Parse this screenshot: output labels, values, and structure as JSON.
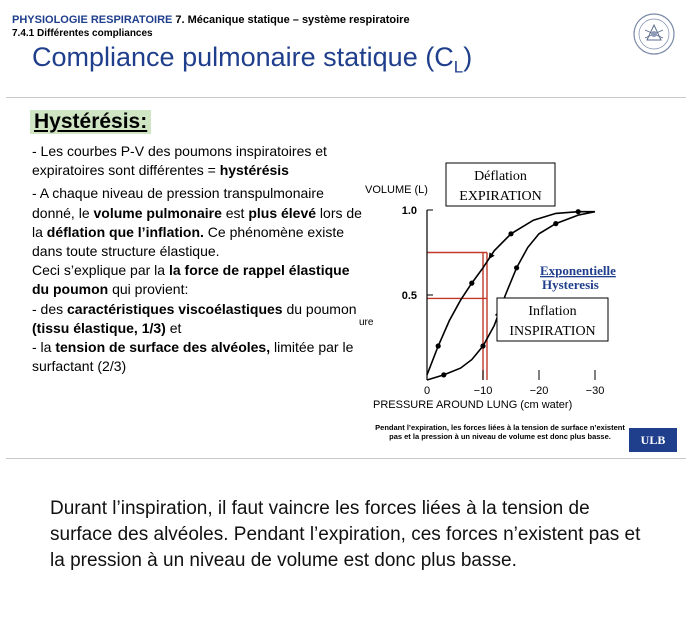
{
  "header": {
    "course": "PHYSIOLOGIE RESPIRATOIRE",
    "chapter": "7. Mécanique statique – système respiratoire",
    "subsection": "7.4.1 Différentes compliances"
  },
  "title": {
    "text": "Compliance pulmonaire statique (C",
    "subscript": "L",
    "close": ")"
  },
  "logo_label": "ULB",
  "hysteresis_heading": "Hystérésis:",
  "paragraph1": [
    {
      "t": "- Les courbes P-V des poumons inspiratoires et expiratoires sont différentes = ",
      "b": false
    },
    {
      "t": "hystérésis",
      "b": true
    }
  ],
  "paragraph2": [
    {
      "t": "- A chaque niveau de pression transpulmonaire donné, le ",
      "b": false
    },
    {
      "t": "volume pulmonaire",
      "b": true
    },
    {
      "t": " est ",
      "b": false
    },
    {
      "t": "plus élevé",
      "b": true
    },
    {
      "t": " lors de la ",
      "b": false
    },
    {
      "t": "déflation que l’inflation.",
      "b": true
    },
    {
      "t": " Ce phénomène existe dans toute structure élastique.",
      "b": false
    }
  ],
  "paragraph3": [
    {
      "t": "Ceci s’explique par la ",
      "b": false
    },
    {
      "t": "la force de rappel élastique du poumon",
      "b": true
    },
    {
      "t": " qui provient:",
      "b": false
    }
  ],
  "paragraph4": [
    {
      "t": "     -  des ",
      "b": false
    },
    {
      "t": "caractéristiques viscoélastiques",
      "b": true
    },
    {
      "t": " du poumon ",
      "b": false
    },
    {
      "t": "(tissu élastique, 1/3)",
      "b": true
    },
    {
      "t": " et",
      "b": false
    }
  ],
  "paragraph5": [
    {
      "t": "     - la ",
      "b": false
    },
    {
      "t": "tension de surface des alvéoles,",
      "b": true
    },
    {
      "t": " limitée par le surfactant (2/3)",
      "b": false
    }
  ],
  "chart_data": {
    "type": "line",
    "ylabel": "VOLUME (L)",
    "xlabel": "PRESSURE AROUND LUNG (cm water)",
    "xlim": [
      0,
      -30
    ],
    "ylim": [
      0,
      1.0
    ],
    "x_ticks": [
      0,
      -10,
      -20,
      -30
    ],
    "x_tick_labels": [
      "0",
      "−10",
      "−20",
      "−30"
    ],
    "y_ticks": [
      0.5,
      1.0
    ],
    "y_tick_labels": [
      "0.5",
      "1.0"
    ],
    "cut_label": "ure",
    "series": [
      {
        "name": "Déflation EXPIRATION",
        "x": [
          -30,
          -27,
          -23,
          -19,
          -15,
          -12,
          -10,
          -8,
          -6,
          -4,
          -2,
          0
        ],
        "y": [
          0.99,
          0.99,
          0.98,
          0.94,
          0.86,
          0.76,
          0.66,
          0.57,
          0.47,
          0.35,
          0.2,
          0.03
        ]
      },
      {
        "name": "Inflation INSPIRATION",
        "x": [
          0,
          -3,
          -6,
          -8,
          -10,
          -12,
          -14,
          -16,
          -18,
          -20,
          -23,
          -27,
          -30
        ],
        "y": [
          0.0,
          0.03,
          0.07,
          0.12,
          0.2,
          0.32,
          0.5,
          0.66,
          0.78,
          0.86,
          0.92,
          0.97,
          0.99
        ]
      }
    ],
    "reference_lines": {
      "y_levels": [
        0.75,
        0.48
      ],
      "x_level": -10
    },
    "annotations": {
      "deflation_box": [
        "Déflation",
        "EXPIRATION"
      ],
      "inflation_box": [
        "Inflation",
        "INSPIRATION"
      ],
      "right_label": [
        "Exponentielle",
        "Hysteresis"
      ]
    },
    "colors": {
      "curve": "#000000",
      "reference": "#c0392b",
      "right_label": "#1f3e8c"
    }
  },
  "caption": "Pendant l’expiration, les forces liées à la tension de surface n’existent pas et la pression à un niveau de volume est donc plus basse.",
  "note": "Durant l’inspiration, il faut vaincre les forces liées à la tension de surface des alvéoles. Pendant l’expiration, ces forces n’existent pas et la pression à un niveau de volume est donc plus basse."
}
